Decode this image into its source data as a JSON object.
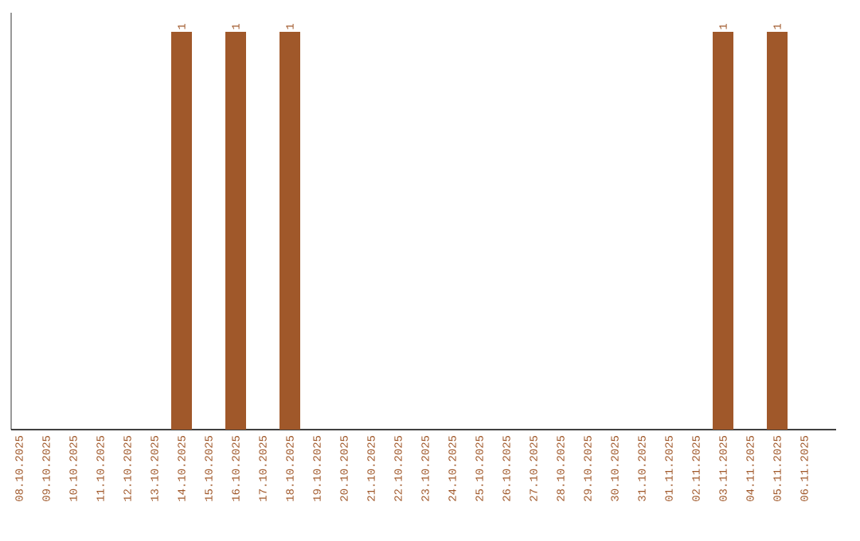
{
  "chart_data": {
    "type": "bar",
    "categories": [
      "08.10.2025",
      "09.10.2025",
      "10.10.2025",
      "11.10.2025",
      "12.10.2025",
      "13.10.2025",
      "14.10.2025",
      "15.10.2025",
      "16.10.2025",
      "17.10.2025",
      "18.10.2025",
      "19.10.2025",
      "20.10.2025",
      "21.10.2025",
      "22.10.2025",
      "23.10.2025",
      "24.10.2025",
      "25.10.2025",
      "26.10.2025",
      "27.10.2025",
      "28.10.2025",
      "29.10.2025",
      "30.10.2025",
      "31.10.2025",
      "01.11.2025",
      "02.11.2025",
      "03.11.2025",
      "04.11.2025",
      "05.11.2025",
      "06.11.2025"
    ],
    "values": [
      0,
      0,
      0,
      0,
      0,
      0,
      1,
      0,
      1,
      0,
      1,
      0,
      0,
      0,
      0,
      0,
      0,
      0,
      0,
      0,
      0,
      0,
      0,
      0,
      0,
      0,
      1,
      0,
      1,
      0
    ],
    "value_labels": [
      null,
      null,
      null,
      null,
      null,
      null,
      "1",
      null,
      "1",
      null,
      "1",
      null,
      null,
      null,
      null,
      null,
      null,
      null,
      null,
      null,
      null,
      null,
      null,
      null,
      null,
      null,
      "1",
      null,
      "1",
      null
    ],
    "color": "#a0582a"
  }
}
